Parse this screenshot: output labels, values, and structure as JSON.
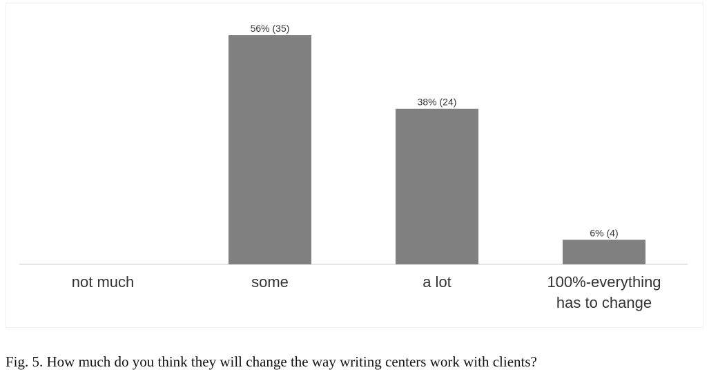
{
  "chart_data": {
    "type": "bar",
    "categories": [
      "not much",
      "some",
      "a lot",
      "100%-everything has to change"
    ],
    "values": [
      0,
      56,
      38,
      6
    ],
    "value_labels": [
      null,
      "56% (35)",
      "38% (24)",
      "6% (4)"
    ],
    "color": "#808080",
    "caption": "Fig. 5. How much do you think they will change the way writing centers work with clients?"
  }
}
